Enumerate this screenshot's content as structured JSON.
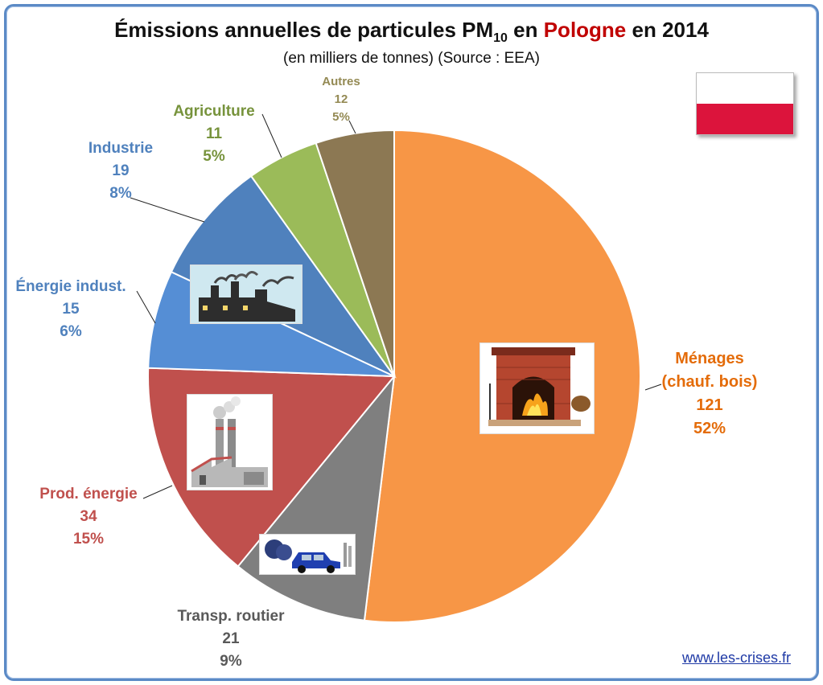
{
  "title": {
    "prefix": "Émissions annuelles de particules PM",
    "subscript": "10",
    "mid": " en ",
    "country": "Pologne",
    "suffix": " en 2014"
  },
  "subtitle": "(en milliers de tonnes) (Source : EEA)",
  "source_link": "www.les-crises.fr",
  "colors": {
    "accent": "#c00000",
    "frame": "#5b8ac6",
    "flag_white": "#ffffff",
    "flag_red": "#dc143c"
  },
  "icons": [
    "poland-flag-icon",
    "fireplace-icon",
    "factory-icon",
    "power-plant-icon",
    "car-exhaust-icon"
  ],
  "chart_data": {
    "type": "pie",
    "start": "12 o'clock",
    "direction": "clockwise",
    "slices": [
      {
        "label": [
          "Ménages",
          "(chauf. bois)"
        ],
        "value": 121,
        "pct": "52%",
        "color": "#f79646",
        "text_color": "#e46c0a"
      },
      {
        "label": [
          "Transp. routier"
        ],
        "value": 21,
        "pct": "9%",
        "color": "#7f7f7f",
        "text_color": "#595959"
      },
      {
        "label": [
          "Prod. énergie"
        ],
        "value": 34,
        "pct": "15%",
        "color": "#c0504d",
        "text_color": "#c0504d"
      },
      {
        "label": [
          "Énergie indust."
        ],
        "value": 15,
        "pct": "6%",
        "color": "#558ed5",
        "text_color": "#4f81bd"
      },
      {
        "label": [
          "Industrie"
        ],
        "value": 19,
        "pct": "8%",
        "color": "#4f81bd",
        "text_color": "#4f81bd"
      },
      {
        "label": [
          "Agriculture"
        ],
        "value": 11,
        "pct": "5%",
        "color": "#9bbb59",
        "text_color": "#77933c"
      },
      {
        "label": [
          "Autres"
        ],
        "value": 12,
        "pct": "5%",
        "color": "#8c7853",
        "text_color": "#948a54"
      }
    ]
  }
}
